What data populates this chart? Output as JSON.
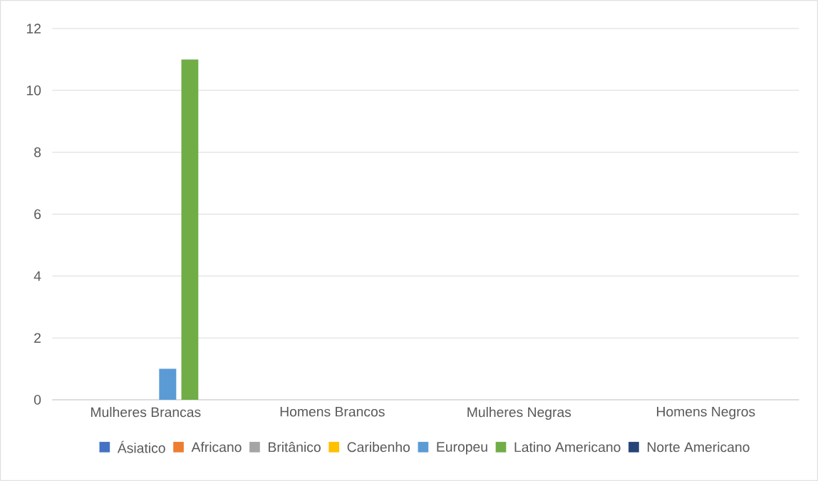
{
  "chart_data": {
    "type": "bar",
    "categories": [
      "Mulheres Brancas",
      "Homens Brancos",
      "Mulheres Negras",
      "Homens Negros"
    ],
    "series": [
      {
        "name": "Ásiatico",
        "color": "#4472c4",
        "values": [
          0,
          0,
          0,
          0
        ]
      },
      {
        "name": "Africano",
        "color": "#ed7d31",
        "values": [
          0,
          0,
          0,
          0
        ]
      },
      {
        "name": "Britânico",
        "color": "#a5a5a5",
        "values": [
          0,
          0,
          0,
          0
        ]
      },
      {
        "name": "Caribenho",
        "color": "#ffc000",
        "values": [
          0,
          0,
          0,
          0
        ]
      },
      {
        "name": "Europeu",
        "color": "#5b9bd5",
        "values": [
          1,
          0,
          0,
          0
        ]
      },
      {
        "name": "Latino Americano",
        "color": "#70ad47",
        "values": [
          11,
          0,
          0,
          0
        ]
      },
      {
        "name": "Norte Americano",
        "color": "#264478",
        "values": [
          0,
          0,
          0,
          0
        ]
      }
    ],
    "ylim": [
      0,
      12
    ],
    "yticks": [
      0,
      2,
      4,
      6,
      8,
      10,
      12
    ],
    "grid": "y",
    "legend": "bottom"
  }
}
